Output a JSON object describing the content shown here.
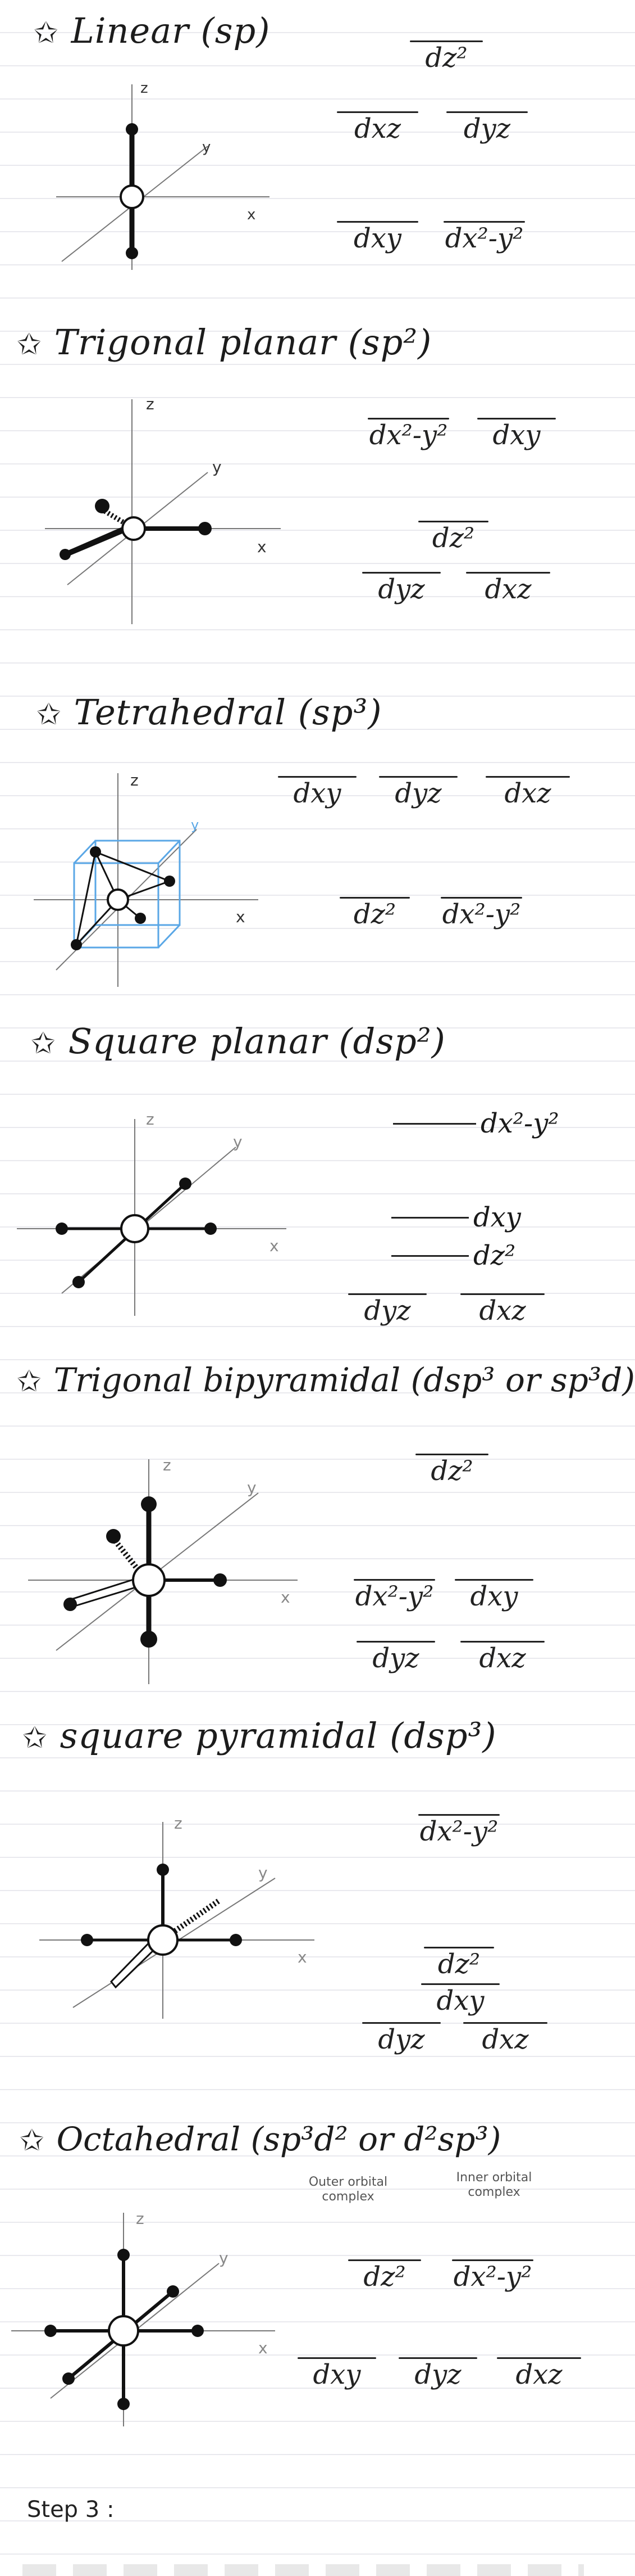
{
  "sections": {
    "linear": {
      "title": "Linear (sp)",
      "orbitals": {
        "dz2": "dz²",
        "dxz": "dxz",
        "dyz": "dyz",
        "dxy": "dxy",
        "dx2y2": "dx²-y²"
      }
    },
    "trigonal_planar": {
      "title": "Trigonal planar (sp²)",
      "orbitals": {
        "dx2y2": "dx²-y²",
        "dxy": "dxy",
        "dz2": "dz²",
        "dyz": "dyz",
        "dxz": "dxz"
      }
    },
    "tetrahedral": {
      "title": "Tetrahedral (sp³)",
      "orbitals": {
        "dxy": "dxy",
        "dyz": "dyz",
        "dxz": "dxz",
        "dz2": "dz²",
        "dx2y2": "dx²-y²"
      }
    },
    "square_planar": {
      "title": "Square planar (dsp²)",
      "orbitals": {
        "dx2y2": "dx²-y²",
        "dxy": "dxy",
        "dz2": "dz²",
        "dyz": "dyz",
        "dxz": "dxz"
      }
    },
    "trigonal_bipyramidal": {
      "title": "Trigonal bipyramidal (dsp³ or sp³d)",
      "orbitals": {
        "dz2": "dz²",
        "dx2y2": "dx²-y²",
        "dxy": "dxy",
        "dyz": "dyz",
        "dxz": "dxz"
      }
    },
    "square_pyramidal": {
      "title": "square pyramidal (dsp³)",
      "orbitals": {
        "dx2y2": "dx²-y²",
        "dz2": "dz²",
        "dxy": "dxy",
        "dyz": "dyz",
        "dxz": "dxz"
      }
    },
    "octahedral": {
      "title": "Octahedral (sp³d² or d²sp³)",
      "notes": {
        "outer": "Outer orbital complex",
        "inner": "Inner orbital complex"
      },
      "orbitals": {
        "dz2": "dz²",
        "dx2y2": "dx²-y²",
        "dxy": "dxy",
        "dyz": "dyz",
        "dxz": "dxz"
      }
    }
  },
  "axis_labels": {
    "x": "x",
    "y": "y",
    "z": "z"
  },
  "footer": {
    "step_label": "Step 3 :"
  },
  "colors": {
    "ink": "#1a1a1a",
    "cube": "#5aa7e6",
    "rule": "#e9e9ee"
  }
}
